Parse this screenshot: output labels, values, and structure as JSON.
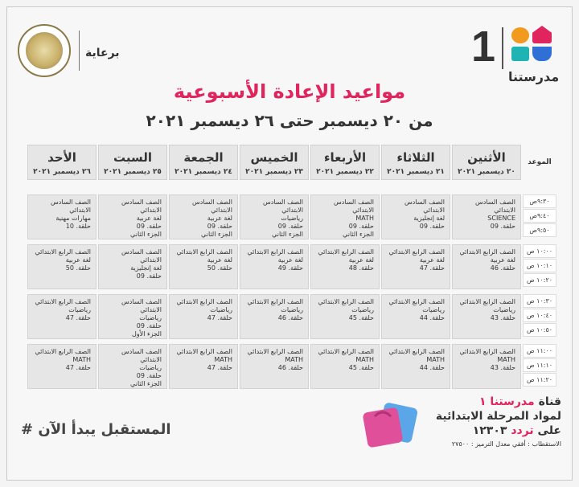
{
  "header": {
    "sponsor_label": "برعاية",
    "ministry_seal_text": "MINISTRY OF EDUCATION AND TECHNICAL",
    "logo_number": "1",
    "logo_name": "مدرستنا",
    "title": "مواعيد الإعادة الأسبوعية",
    "subtitle": "من ٢٠ ديسمبر حتى ٢٦ ديسمبر ٢٠٢١",
    "colors": {
      "title": "#e0245e",
      "accent_blue": "#2f6fd6",
      "accent_orange": "#f29a1e",
      "accent_teal": "#1fb3b3",
      "accent_red": "#e0245e"
    }
  },
  "schedule": {
    "time_header": "الموعد",
    "days": [
      {
        "day": "الأثنين",
        "date": "٢٠ ديسمبر ٢٠٢١"
      },
      {
        "day": "الثلاثاء",
        "date": "٢١ ديسمبر ٢٠٢١"
      },
      {
        "day": "الأربعاء",
        "date": "٢٢ ديسمبر ٢٠٢١"
      },
      {
        "day": "الخميس",
        "date": "٢٣ ديسمبر ٢٠٢١"
      },
      {
        "day": "الجمعة",
        "date": "٢٤ ديسمبر ٢٠٢١"
      },
      {
        "day": "السبت",
        "date": "٢٥ ديسمبر ٢٠٢١"
      },
      {
        "day": "الأحد",
        "date": "٢٦ ديسمبر ٢٠٢١"
      }
    ],
    "times": [
      "٩:٣٠ص",
      "٩:٤٠ص",
      "٩:٥٠ص",
      "١٠:٠٠ ص",
      "١٠:١٠ ص",
      "١٠:٢٠ ص",
      "١٠:٣٠ ص",
      "١٠:٤٠ ص",
      "١٠:٥٠ ص",
      "١١:٠٠ ص",
      "١١:١٠ ص",
      "١١:٢٠ ص"
    ],
    "rows": [
      [
        [
          "الصف السادس الابتدائي",
          "SCIENCE",
          "حلقة. 09"
        ],
        [
          "الصف السادس الابتدائي",
          "لغة إنجليزية",
          "حلقة. 09"
        ],
        [
          "الصف السادس الابتدائي",
          "MATH",
          "حلقة. 09",
          "الجزء الثاني"
        ],
        [
          "الصف السادس الابتدائي",
          "رياضيات",
          "حلقة. 09",
          "الجزء الثاني"
        ],
        [
          "الصف السادس الابتدائي",
          "لغة عربية",
          "حلقة. 09",
          "الجزء الثاني"
        ],
        [
          "الصف السادس الابتدائي",
          "لغة عربية",
          "حلقة. 09",
          "الجزء الثاني"
        ],
        [
          "الصف السادس الابتدائي",
          "مهارات مهنية",
          "حلقة. 10"
        ]
      ],
      [
        [
          "الصف الرابع الابتدائي",
          "لغة عربية",
          "حلقة. 46"
        ],
        [
          "الصف الرابع الابتدائي",
          "لغة عربية",
          "حلقة. 47"
        ],
        [
          "الصف الرابع الابتدائي",
          "لغة عربية",
          "حلقة. 48"
        ],
        [
          "الصف الرابع الابتدائي",
          "لغة عربية",
          "حلقة. 49"
        ],
        [
          "الصف الرابع الابتدائي",
          "لغة عربية",
          "حلقة. 50"
        ],
        [
          "الصف السادس الابتدائي",
          "لغة إنجليزية",
          "حلقة. 09"
        ],
        [
          "الصف الرابع الابتدائي",
          "لغة عربية",
          "حلقة. 50"
        ]
      ],
      [
        [
          "الصف الرابع الابتدائي",
          "رياضيات",
          "حلقة. 43"
        ],
        [
          "الصف الرابع الابتدائي",
          "رياضيات",
          "حلقة. 44"
        ],
        [
          "الصف الرابع الابتدائي",
          "رياضيات",
          "حلقة. 45"
        ],
        [
          "الصف الرابع الابتدائي",
          "رياضيات",
          "حلقة. 46"
        ],
        [
          "الصف الرابع الابتدائي",
          "رياضيات",
          "حلقة. 47"
        ],
        [
          "الصف السادس الابتدائي",
          "رياضيات",
          "حلقة. 09",
          "الجزء الأول"
        ],
        [
          "الصف الرابع الابتدائي",
          "رياضيات",
          "حلقة. 47"
        ]
      ],
      [
        [
          "الصف الرابع الابتدائي",
          "MATH",
          "حلقة. 43"
        ],
        [
          "الصف الرابع الابتدائي",
          "MATH",
          "حلقة. 44"
        ],
        [
          "الصف الرابع الابتدائي",
          "MATH",
          "حلقة. 45"
        ],
        [
          "الصف الرابع الابتدائي",
          "MATH",
          "حلقة. 46"
        ],
        [
          "الصف الرابع الابتدائي",
          "MATH",
          "حلقة. 47"
        ],
        [
          "الصف السادس الابتدائي",
          "رياضيات",
          "حلقة. 09",
          "الجزء الثاني"
        ],
        [
          "الصف الرابع الابتدائي",
          "MATH",
          "حلقة. 47"
        ]
      ]
    ]
  },
  "footer": {
    "hashtag": "# المستقبل يبدأ الآن",
    "channel_prefix": "قناة",
    "channel_name": "مدرستنا ١",
    "line2": "لمواد المرحلة الابتدائية",
    "freq_prefix": "على",
    "freq_word": "تردد",
    "freq_value": "١٢٣٠٣",
    "reception": "الاستقطاب : أفقي معدل الترميز : ٢٧٥٠٠"
  }
}
